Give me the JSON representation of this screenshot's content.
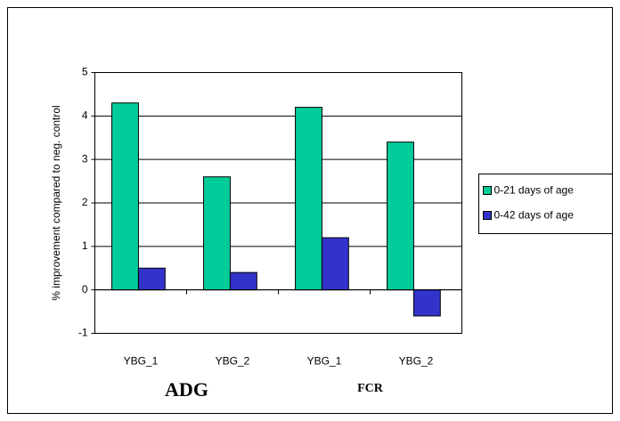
{
  "chart_data": {
    "type": "bar",
    "y_label": "% improvement compared to neg. control",
    "categories": [
      "YBG_1",
      "YBG_2",
      "YBG_1",
      "YBG_2"
    ],
    "groups": [
      "ADG",
      "FCR"
    ],
    "series": [
      {
        "name": "0-21 days of age",
        "color": "#00cc99",
        "values": [
          4.3,
          2.6,
          4.2,
          3.4
        ]
      },
      {
        "name": "0-42 days of age",
        "color": "#3333cc",
        "values": [
          0.5,
          0.4,
          1.2,
          -0.6
        ]
      }
    ],
    "ylim": [
      -1,
      5
    ],
    "yticks": [
      -1,
      0,
      1,
      2,
      3,
      4,
      5
    ],
    "grid": true,
    "legend": "right"
  }
}
